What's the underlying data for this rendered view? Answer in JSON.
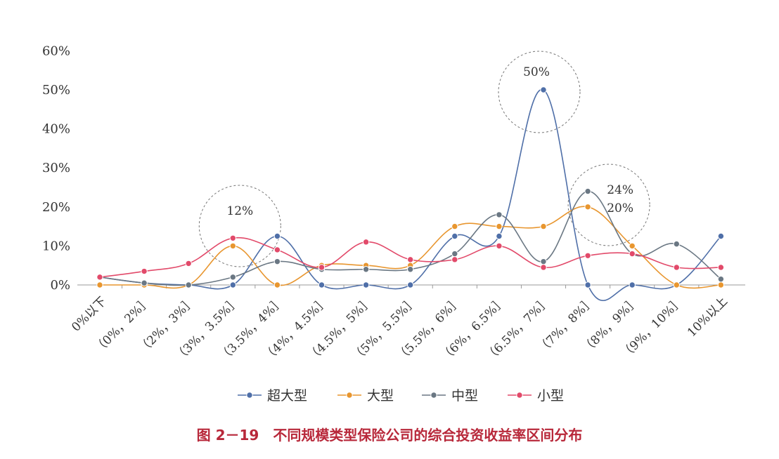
{
  "caption": "图 2－19　不同规模类型保险公司的综合投资收益率区间分布",
  "chart_data": {
    "type": "line",
    "categories": [
      "0%以下",
      "（0%，2%］",
      "（2%，3%］",
      "（3%，3.5%］",
      "（3.5%，4%］",
      "（4%，4.5%］",
      "（4.5%，5%］",
      "（5%，5.5%］",
      "（5.5%，6%］",
      "（6%，6.5%］",
      "（6.5%，7%］",
      "（7%，8%］",
      "（8%，9%］",
      "（9%，10%］",
      "10%以上"
    ],
    "y_ticks": [
      "0%",
      "10%",
      "20%",
      "30%",
      "40%",
      "50%",
      "60%"
    ],
    "ylim": [
      0,
      60
    ],
    "legend_position": "bottom",
    "series": [
      {
        "name": "超大型",
        "color": "#4f6fa8",
        "values": [
          2,
          0.5,
          0,
          0,
          12.5,
          0,
          0,
          0,
          12.5,
          12.5,
          50,
          0,
          0,
          0,
          12.5
        ]
      },
      {
        "name": "大型",
        "color": "#e8962f",
        "values": [
          0,
          0,
          0,
          10,
          0,
          5,
          5,
          5,
          15,
          15,
          15,
          20,
          10,
          0,
          0
        ]
      },
      {
        "name": "中型",
        "color": "#6a7783",
        "values": [
          2,
          0.5,
          0,
          2,
          6,
          4,
          4,
          4,
          8,
          18,
          6,
          24,
          8,
          10.5,
          1.5
        ]
      },
      {
        "name": "小型",
        "color": "#e24a6a",
        "values": [
          2,
          3.5,
          5.5,
          12,
          9,
          4.5,
          11,
          6.5,
          6.5,
          10,
          4.5,
          7.5,
          8,
          4.5,
          4.5
        ]
      }
    ],
    "annotations": [
      {
        "text": "12%",
        "at_category": 3,
        "at_value": 12
      },
      {
        "text": "50%",
        "at_category": 10,
        "at_value": 50
      },
      {
        "text": "24%",
        "at_category": 11,
        "at_value": 24
      },
      {
        "text": "20%",
        "at_category": 11,
        "at_value": 20
      }
    ]
  }
}
